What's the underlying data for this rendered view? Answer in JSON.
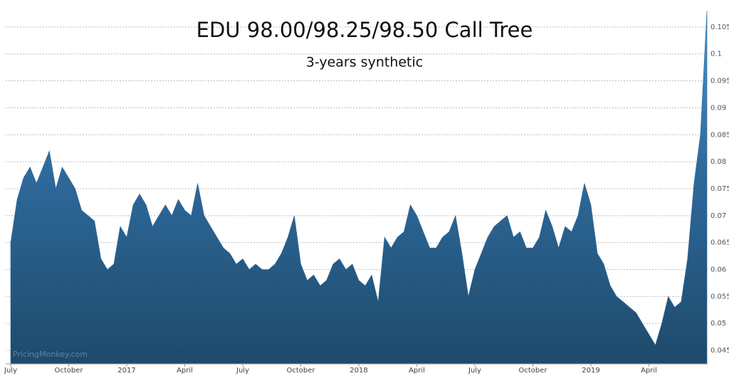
{
  "chart_data": {
    "type": "area",
    "title": "EDU 98.00/98.25/98.50 Call Tree",
    "subtitle": "3-years synthetic",
    "watermark": "PricingMonkey.com",
    "categories": [
      "July",
      null,
      null,
      null,
      null,
      null,
      null,
      null,
      null,
      "October",
      null,
      null,
      null,
      null,
      null,
      null,
      null,
      null,
      "2017",
      null,
      null,
      null,
      null,
      null,
      null,
      null,
      null,
      "April",
      null,
      null,
      null,
      null,
      null,
      null,
      null,
      null,
      "July",
      null,
      null,
      null,
      null,
      null,
      null,
      null,
      null,
      "October",
      null,
      null,
      null,
      null,
      null,
      null,
      null,
      null,
      "2018",
      null,
      null,
      null,
      null,
      null,
      null,
      null,
      null,
      "April",
      null,
      null,
      null,
      null,
      null,
      null,
      null,
      null,
      "July",
      null,
      null,
      null,
      null,
      null,
      null,
      null,
      null,
      "October",
      null,
      null,
      null,
      null,
      null,
      null,
      null,
      null,
      "2019",
      null,
      null,
      null,
      null,
      null,
      null,
      null,
      null,
      "April",
      null,
      null,
      null,
      null,
      null,
      null,
      null,
      null,
      null
    ],
    "values": [
      0.065,
      0.073,
      0.077,
      0.079,
      0.076,
      0.079,
      0.082,
      0.075,
      0.079,
      0.077,
      0.075,
      0.071,
      0.07,
      0.069,
      0.062,
      0.06,
      0.061,
      0.068,
      0.066,
      0.072,
      0.074,
      0.072,
      0.068,
      0.07,
      0.072,
      0.07,
      0.073,
      0.071,
      0.07,
      0.076,
      0.07,
      0.068,
      0.066,
      0.064,
      0.063,
      0.061,
      0.062,
      0.06,
      0.061,
      0.06,
      0.06,
      0.061,
      0.063,
      0.066,
      0.07,
      0.061,
      0.058,
      0.059,
      0.057,
      0.058,
      0.061,
      0.062,
      0.06,
      0.061,
      0.058,
      0.057,
      0.059,
      0.054,
      0.066,
      0.064,
      0.066,
      0.067,
      0.072,
      0.07,
      0.067,
      0.064,
      0.064,
      0.066,
      0.067,
      0.07,
      0.063,
      0.055,
      0.06,
      0.063,
      0.066,
      0.068,
      0.069,
      0.07,
      0.066,
      0.067,
      0.064,
      0.064,
      0.066,
      0.071,
      0.068,
      0.064,
      0.068,
      0.067,
      0.07,
      0.076,
      0.072,
      0.063,
      0.061,
      0.057,
      0.055,
      0.054,
      0.053,
      0.052,
      0.05,
      0.048,
      0.046,
      0.05,
      0.055,
      0.053,
      0.054,
      0.062,
      0.076,
      0.085,
      0.108
    ],
    "color": "#2e6a9c",
    "ylim": [
      0.0425,
      0.11
    ],
    "yticks": [
      0.045,
      0.05,
      0.055,
      0.06,
      0.065,
      0.07,
      0.075,
      0.08,
      0.085,
      0.09,
      0.095,
      0.1,
      0.105
    ],
    "grid": true
  }
}
